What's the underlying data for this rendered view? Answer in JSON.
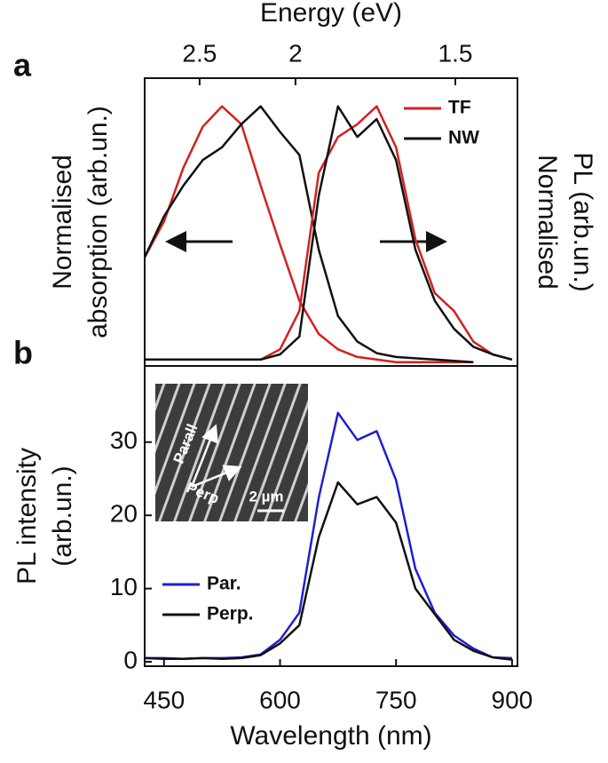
{
  "chart_data": [
    {
      "type": "line",
      "label": "a",
      "x2label": "Energy (eV)",
      "x2ticks": [
        2.5,
        2,
        1.5
      ],
      "ylabel": [
        "Normalised",
        "absorption (arb.un.)"
      ],
      "y2label": [
        "Normalised",
        "PL (arb.un.)"
      ],
      "xlim": [
        425,
        907
      ],
      "ylim": [
        -0.015,
        1.11
      ],
      "legend": "upper right",
      "x": [
        425,
        450,
        475,
        500,
        525,
        550,
        575,
        600,
        625,
        650,
        675,
        700,
        725,
        750,
        775,
        800,
        825,
        850,
        875,
        900
      ],
      "series": [
        {
          "name": "TF",
          "color": "#d42020",
          "values": [
            0.41,
            0.55,
            0.76,
            0.92,
            1.0,
            0.93,
            0.69,
            0.46,
            0.24,
            0.11,
            0.05,
            0.02,
            0.01,
            0.0,
            0.0,
            0.0,
            0.0,
            0.0,
            null,
            null
          ]
        },
        {
          "name": "NW",
          "color": "#111111",
          "values": [
            0.41,
            0.57,
            0.69,
            0.79,
            0.84,
            0.93,
            1.0,
            0.9,
            0.81,
            0.44,
            0.18,
            0.08,
            0.035,
            0.02,
            0.015,
            0.01,
            0.005,
            0.0,
            null,
            null
          ]
        },
        {
          "name": "TF",
          "color": "#d42020",
          "values": [
            0.01,
            0.01,
            0.01,
            0.01,
            0.01,
            0.01,
            0.01,
            0.05,
            0.2,
            0.74,
            0.88,
            0.93,
            1.0,
            0.84,
            0.48,
            0.27,
            0.2,
            0.08,
            0.03,
            0.01
          ]
        },
        {
          "name": "NW",
          "color": "#111111",
          "values": [
            0.01,
            0.01,
            0.01,
            0.01,
            0.01,
            0.01,
            0.01,
            0.03,
            0.1,
            0.65,
            1.0,
            0.88,
            0.95,
            0.79,
            0.44,
            0.24,
            0.13,
            0.06,
            0.03,
            0.01
          ]
        }
      ]
    },
    {
      "type": "line",
      "label": "b",
      "xlabel": "Wavelength (nm)",
      "ylabel": [
        "PL intensity",
        "(arb.un.)"
      ],
      "xlim": [
        425,
        907
      ],
      "ylim": [
        -0.6,
        40.4
      ],
      "xticks": [
        450,
        600,
        750,
        900
      ],
      "yticks": [
        0,
        10,
        20,
        30
      ],
      "legend": "lower left",
      "inset": {
        "labels": [
          "Parall",
          "Perp",
          "2 µm"
        ]
      },
      "x": [
        425,
        450,
        475,
        500,
        525,
        550,
        575,
        600,
        625,
        650,
        675,
        700,
        725,
        750,
        775,
        800,
        825,
        850,
        875,
        900
      ],
      "series": [
        {
          "name": "Par.",
          "color": "#1f1fd0",
          "values": [
            0.5,
            0.5,
            0.4,
            0.5,
            0.5,
            0.6,
            1.0,
            3,
            6.7,
            22.4,
            34,
            30.3,
            31.5,
            24.8,
            12.7,
            6.7,
            3.6,
            1.8,
            0.6,
            0.5
          ]
        },
        {
          "name": "Perp.",
          "color": "#111111",
          "values": [
            0.5,
            0.4,
            0.4,
            0.5,
            0.4,
            0.5,
            0.9,
            2.5,
            5,
            17,
            24.5,
            21.5,
            22.5,
            19,
            10,
            6.5,
            3,
            1.5,
            0.6,
            0.3
          ]
        }
      ]
    }
  ]
}
